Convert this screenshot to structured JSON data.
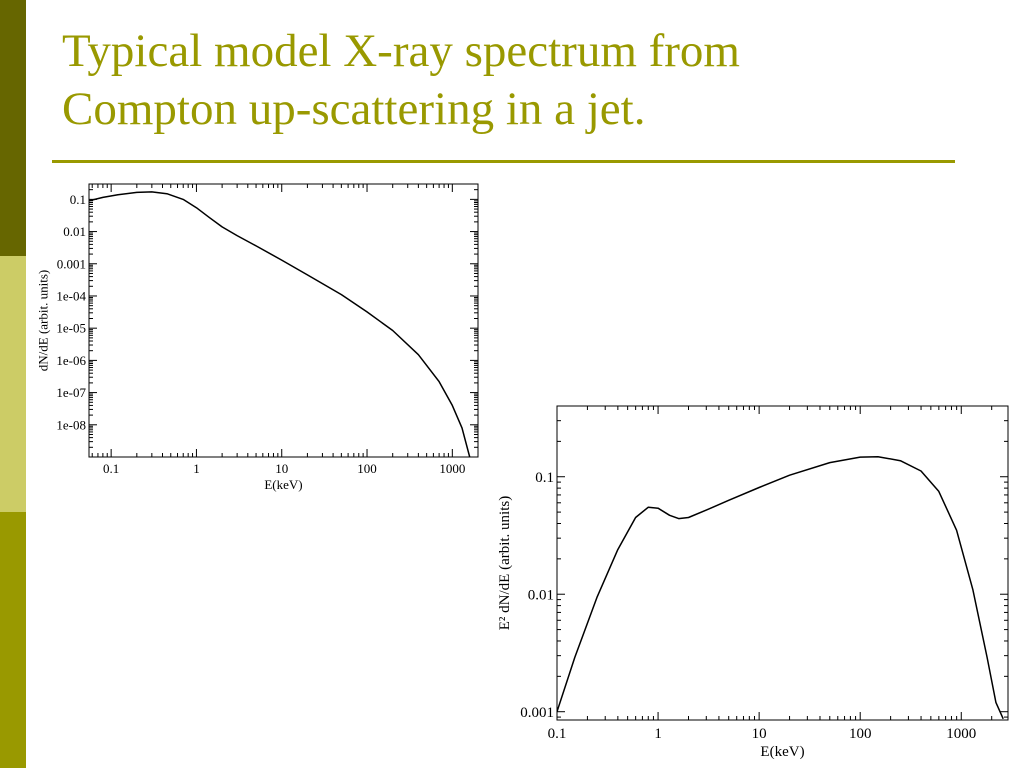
{
  "slide": {
    "title_lines": [
      "Typical model X-ray spectrum from",
      "Compton up-scattering in a jet."
    ],
    "colors": {
      "title": "#999900",
      "bar_top": "#666600",
      "bar_mid": "#cccc66",
      "bar_bottom": "#999900",
      "rule": "#999900"
    }
  },
  "chart_data": [
    {
      "type": "line",
      "xlabel": "E(keV)",
      "ylabel": "dN/dE  (arbit. units)",
      "xscale": "log",
      "yscale": "log",
      "xlim": [
        0.055,
        2000
      ],
      "ylim": [
        1e-09,
        0.3
      ],
      "xticks": [
        0.1,
        1,
        10,
        100,
        1000
      ],
      "xtick_labels": [
        "0.1",
        "1",
        "10",
        "100",
        "1000"
      ],
      "yticks": [
        0.1,
        0.01,
        0.001,
        0.0001,
        1e-05,
        1e-06,
        1e-07,
        1e-08
      ],
      "ytick_labels": [
        "0.1",
        "0.01",
        "0.001",
        "1e-04",
        "1e-05",
        "1e-06",
        "1e-07",
        "1e-08"
      ],
      "grid": false,
      "series": [
        {
          "x": [
            0.055,
            0.08,
            0.12,
            0.2,
            0.3,
            0.45,
            0.7,
            1.0,
            1.4,
            2.0,
            3.0,
            5.0,
            10,
            20,
            50,
            100,
            200,
            400,
            700,
            1000,
            1300,
            1600
          ],
          "y": [
            0.09,
            0.115,
            0.14,
            0.165,
            0.17,
            0.15,
            0.1,
            0.055,
            0.028,
            0.014,
            0.0075,
            0.0036,
            0.0013,
            0.00045,
            0.00011,
            3.2e-05,
            8.5e-06,
            1.5e-06,
            2.2e-07,
            4e-08,
            8e-09,
            1e-09
          ]
        }
      ]
    },
    {
      "type": "line",
      "xlabel": "E(keV)",
      "ylabel": "E² dN/dE  (arbit. units)",
      "xscale": "log",
      "yscale": "log",
      "xlim": [
        0.1,
        2900
      ],
      "ylim": [
        0.00085,
        0.4
      ],
      "xticks": [
        0.1,
        1,
        10,
        100,
        1000
      ],
      "xtick_labels": [
        "0.1",
        "1",
        "10",
        "100",
        "1000"
      ],
      "yticks": [
        0.1,
        0.01,
        0.001
      ],
      "ytick_labels": [
        "0.1",
        "0.01",
        "0.001"
      ],
      "grid": false,
      "series": [
        {
          "x": [
            0.1,
            0.15,
            0.25,
            0.4,
            0.6,
            0.8,
            1.0,
            1.3,
            1.6,
            2.0,
            3.0,
            5.0,
            10,
            20,
            50,
            100,
            150,
            250,
            400,
            600,
            900,
            1300,
            1800,
            2200,
            2600
          ],
          "y": [
            0.001,
            0.0029,
            0.0095,
            0.024,
            0.045,
            0.055,
            0.054,
            0.047,
            0.044,
            0.045,
            0.052,
            0.063,
            0.081,
            0.103,
            0.132,
            0.147,
            0.148,
            0.137,
            0.112,
            0.075,
            0.035,
            0.011,
            0.0029,
            0.0012,
            0.00087
          ]
        }
      ]
    }
  ]
}
